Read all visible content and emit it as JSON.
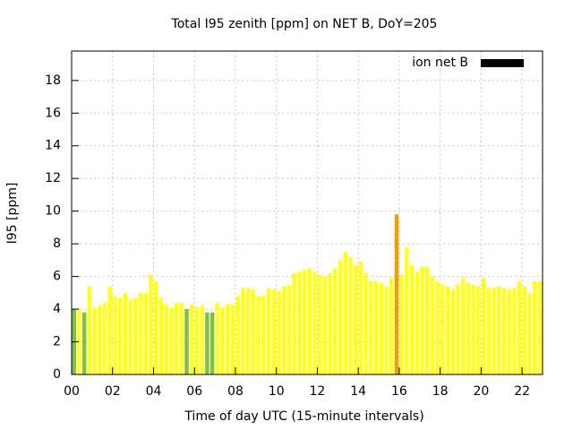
{
  "chart_data": {
    "type": "bar",
    "title": "Total I95 zenith [ppm] on NET B, DoY=205",
    "x_label": "Time of day UTC (15-minute intervals)",
    "y_label": "I95 [ppm]",
    "x": [
      0,
      0.25,
      0.5,
      0.75,
      1,
      1.25,
      1.5,
      1.75,
      2,
      2.25,
      2.5,
      2.75,
      3,
      3.25,
      3.5,
      3.75,
      4,
      4.25,
      4.5,
      4.75,
      5,
      5.25,
      5.5,
      5.75,
      6,
      6.25,
      6.5,
      6.75,
      7,
      7.25,
      7.5,
      7.75,
      8,
      8.25,
      8.5,
      8.75,
      9,
      9.25,
      9.5,
      9.75,
      10,
      10.25,
      10.5,
      10.75,
      11,
      11.25,
      11.5,
      11.75,
      12,
      12.25,
      12.5,
      12.75,
      13,
      13.25,
      13.5,
      13.75,
      14,
      14.25,
      14.5,
      14.75,
      15,
      15.25,
      15.5,
      15.75,
      16,
      16.25,
      16.5,
      16.75,
      17,
      17.25,
      17.5,
      17.75,
      18,
      18.25,
      18.5,
      18.75,
      19,
      19.25,
      19.5,
      19.75,
      20,
      20.25,
      20.5,
      20.75,
      21,
      21.25,
      21.5,
      21.75,
      22,
      22.25,
      22.5,
      22.75
    ],
    "series": [
      {
        "name": "ion net B",
        "color": "#000000",
        "values": [
          4.0,
          4.0,
          3.8,
          5.4,
          4.1,
          4.2,
          4.4,
          5.4,
          4.8,
          4.7,
          5.0,
          4.6,
          4.7,
          5.0,
          5.0,
          6.1,
          5.7,
          4.7,
          4.3,
          4.1,
          4.4,
          4.4,
          4.0,
          4.3,
          4.1,
          4.2,
          3.8,
          3.8,
          4.4,
          4.1,
          4.3,
          4.3,
          4.8,
          5.3,
          5.3,
          5.2,
          4.8,
          4.8,
          5.3,
          5.2,
          5.1,
          5.4,
          5.5,
          6.2,
          6.3,
          6.4,
          6.5,
          6.3,
          6.1,
          6.0,
          6.2,
          6.5,
          7.0,
          7.5,
          7.2,
          6.7,
          6.9,
          6.2,
          5.7,
          5.7,
          5.6,
          5.4,
          5.9,
          9.8,
          6.1,
          7.8,
          6.7,
          6.3,
          6.6,
          6.6,
          6.0,
          5.7,
          5.5,
          5.4,
          5.2,
          5.5,
          5.9,
          5.6,
          5.5,
          5.4,
          5.9,
          5.3,
          5.3,
          5.4,
          5.3,
          5.2,
          5.3,
          5.7,
          5.4,
          5.0,
          5.7,
          5.7
        ],
        "colors": [
          "#80c040",
          "#ffff20",
          "#80c040",
          "#ffff20",
          "#ffff20",
          "#ffff20",
          "#ffff20",
          "#ffff20",
          "#ffff20",
          "#ffff20",
          "#ffff20",
          "#ffff20",
          "#ffff20",
          "#ffff20",
          "#ffff20",
          "#ffff20",
          "#ffff20",
          "#ffff20",
          "#ffff20",
          "#ffff20",
          "#ffff20",
          "#ffff20",
          "#80c040",
          "#ffff20",
          "#ffff20",
          "#ffff20",
          "#80c040",
          "#80c040",
          "#ffff20",
          "#ffff20",
          "#ffff20",
          "#ffff20",
          "#ffff20",
          "#ffff20",
          "#ffff20",
          "#ffff20",
          "#ffff20",
          "#ffff20",
          "#ffff20",
          "#ffff20",
          "#ffff20",
          "#ffff20",
          "#ffff20",
          "#ffff20",
          "#ffff20",
          "#ffff20",
          "#ffff20",
          "#ffff20",
          "#ffff20",
          "#ffff20",
          "#ffff20",
          "#ffff20",
          "#ffff20",
          "#ffff20",
          "#ffff20",
          "#ffff20",
          "#ffff20",
          "#ffff20",
          "#ffff20",
          "#ffff20",
          "#ffff20",
          "#ffff20",
          "#ffff20",
          "#f0a000",
          "#ffff20",
          "#ffff20",
          "#ffff20",
          "#ffff20",
          "#ffff20",
          "#ffff20",
          "#ffff20",
          "#ffff20",
          "#ffff20",
          "#ffff20",
          "#ffff20",
          "#ffff20",
          "#ffff20",
          "#ffff20",
          "#ffff20",
          "#ffff20",
          "#ffff20",
          "#ffff20",
          "#ffff20",
          "#ffff20",
          "#ffff20",
          "#ffff20",
          "#ffff20",
          "#ffff20",
          "#ffff20",
          "#ffff20",
          "#ffff20",
          "#ffff20"
        ]
      }
    ],
    "xlim": [
      0,
      23
    ],
    "xticks": [
      {
        "value": 0,
        "label": "00"
      },
      {
        "value": 2,
        "label": "02"
      },
      {
        "value": 4,
        "label": "04"
      },
      {
        "value": 6,
        "label": "06"
      },
      {
        "value": 8,
        "label": "08"
      },
      10,
      12,
      14,
      16,
      18,
      20,
      22
    ],
    "ylim": [
      0,
      19.8
    ],
    "yticks": [
      0,
      2,
      4,
      6,
      8,
      10,
      12,
      14,
      16,
      18
    ],
    "grid": true,
    "legend": "top-right"
  }
}
